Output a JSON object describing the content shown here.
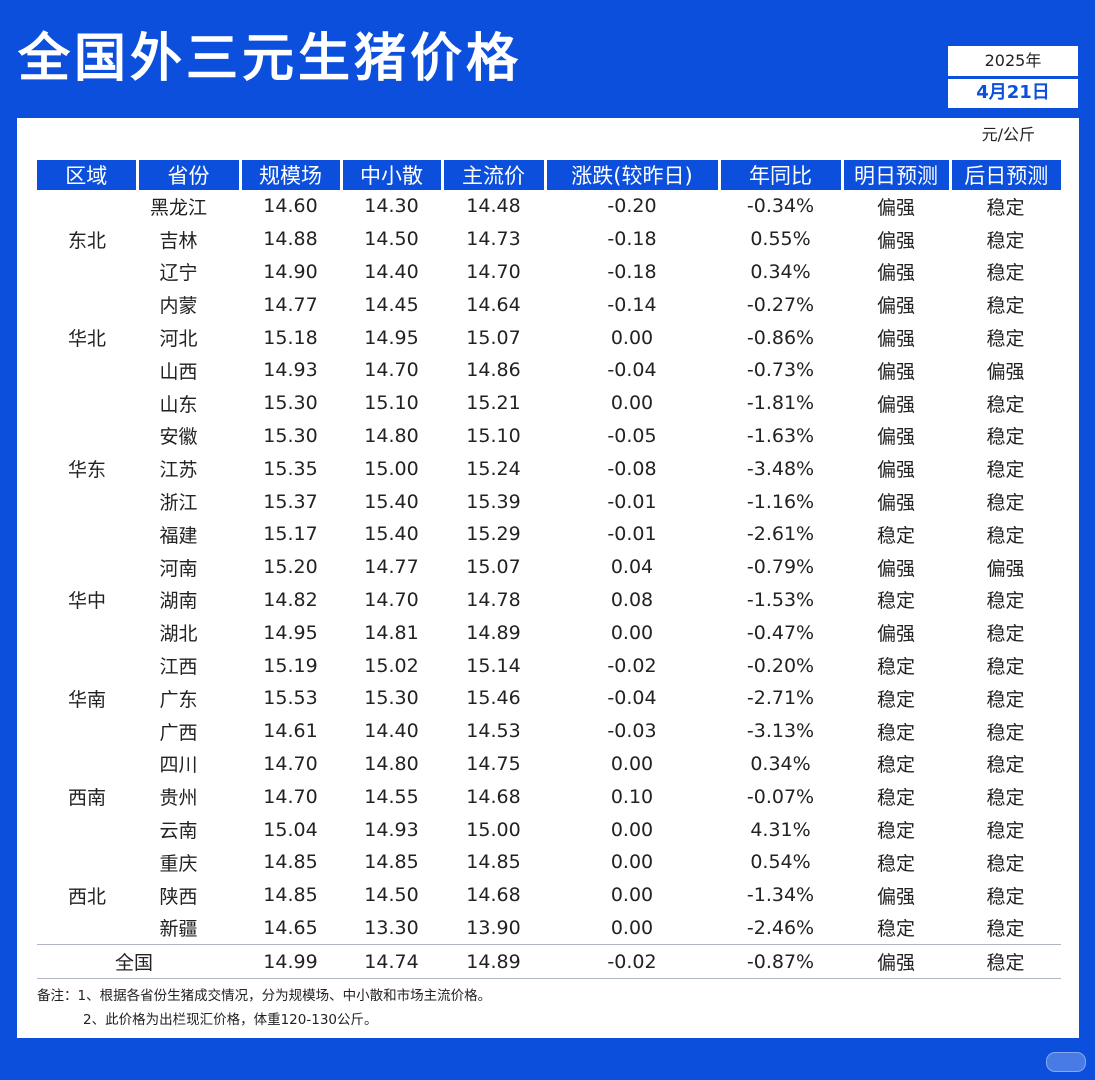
{
  "title": "全国外三元生猪价格",
  "date": {
    "year": "2025年",
    "day": "4月21日"
  },
  "unit": "元/公斤",
  "colors": {
    "background": "#0b4fdc",
    "up": "#e8103a",
    "down": "#18b86a",
    "strong": "#e8103a"
  },
  "headers": [
    "区域",
    "省份",
    "规模场",
    "中小散",
    "主流价",
    "涨跌(较昨日)",
    "年同比",
    "明日预测",
    "后日预测"
  ],
  "regions": [
    {
      "name": "东北",
      "rows": [
        [
          "黑龙江",
          "14.60",
          "14.30",
          "14.48",
          "-0.20",
          "-0.34%",
          "偏强",
          "稳定"
        ],
        [
          "吉林",
          "14.88",
          "14.50",
          "14.73",
          "-0.18",
          "0.55%",
          "偏强",
          "稳定"
        ],
        [
          "辽宁",
          "14.90",
          "14.40",
          "14.70",
          "-0.18",
          "0.34%",
          "偏强",
          "稳定"
        ]
      ]
    },
    {
      "name": "华北",
      "rows": [
        [
          "内蒙",
          "14.77",
          "14.45",
          "14.64",
          "-0.14",
          "-0.27%",
          "偏强",
          "稳定"
        ],
        [
          "河北",
          "15.18",
          "14.95",
          "15.07",
          "0.00",
          "-0.86%",
          "偏强",
          "稳定"
        ],
        [
          "山西",
          "14.93",
          "14.70",
          "14.86",
          "-0.04",
          "-0.73%",
          "偏强",
          "偏强"
        ]
      ]
    },
    {
      "name": "华东",
      "rows": [
        [
          "山东",
          "15.30",
          "15.10",
          "15.21",
          "0.00",
          "-1.81%",
          "偏强",
          "稳定"
        ],
        [
          "安徽",
          "15.30",
          "14.80",
          "15.10",
          "-0.05",
          "-1.63%",
          "偏强",
          "稳定"
        ],
        [
          "江苏",
          "15.35",
          "15.00",
          "15.24",
          "-0.08",
          "-3.48%",
          "偏强",
          "稳定"
        ],
        [
          "浙江",
          "15.37",
          "15.40",
          "15.39",
          "-0.01",
          "-1.16%",
          "偏强",
          "稳定"
        ],
        [
          "福建",
          "15.17",
          "15.40",
          "15.29",
          "-0.01",
          "-2.61%",
          "稳定",
          "稳定"
        ]
      ]
    },
    {
      "name": "华中",
      "rows": [
        [
          "河南",
          "15.20",
          "14.77",
          "15.07",
          "0.04",
          "-0.79%",
          "偏强",
          "偏强"
        ],
        [
          "湖南",
          "14.82",
          "14.70",
          "14.78",
          "0.08",
          "-1.53%",
          "稳定",
          "稳定"
        ],
        [
          "湖北",
          "14.95",
          "14.81",
          "14.89",
          "0.00",
          "-0.47%",
          "偏强",
          "稳定"
        ]
      ]
    },
    {
      "name": "华南",
      "rows": [
        [
          "江西",
          "15.19",
          "15.02",
          "15.14",
          "-0.02",
          "-0.20%",
          "稳定",
          "稳定"
        ],
        [
          "广东",
          "15.53",
          "15.30",
          "15.46",
          "-0.04",
          "-2.71%",
          "稳定",
          "稳定"
        ],
        [
          "广西",
          "14.61",
          "14.40",
          "14.53",
          "-0.03",
          "-3.13%",
          "稳定",
          "稳定"
        ]
      ]
    },
    {
      "name": "西南",
      "rows": [
        [
          "四川",
          "14.70",
          "14.80",
          "14.75",
          "0.00",
          "0.34%",
          "稳定",
          "稳定"
        ],
        [
          "贵州",
          "14.70",
          "14.55",
          "14.68",
          "0.10",
          "-0.07%",
          "稳定",
          "稳定"
        ],
        [
          "云南",
          "15.04",
          "14.93",
          "15.00",
          "0.00",
          "4.31%",
          "稳定",
          "稳定"
        ]
      ]
    },
    {
      "name": "西北",
      "rows": [
        [
          "重庆",
          "14.85",
          "14.85",
          "14.85",
          "0.00",
          "0.54%",
          "稳定",
          "稳定"
        ],
        [
          "陕西",
          "14.85",
          "14.50",
          "14.68",
          "0.00",
          "-1.34%",
          "偏强",
          "稳定"
        ],
        [
          "新疆",
          "14.65",
          "13.30",
          "13.90",
          "0.00",
          "-2.46%",
          "稳定",
          "稳定"
        ]
      ]
    }
  ],
  "total": [
    "全国",
    "14.99",
    "14.74",
    "14.89",
    "-0.02",
    "-0.87%",
    "偏强",
    "稳定"
  ],
  "notes": [
    "备注：1、根据各省份生猪成交情况，分为规模场、中小散和市场主流价格。",
    "2、此价格为出栏现汇价格，体重120-130公斤。"
  ]
}
